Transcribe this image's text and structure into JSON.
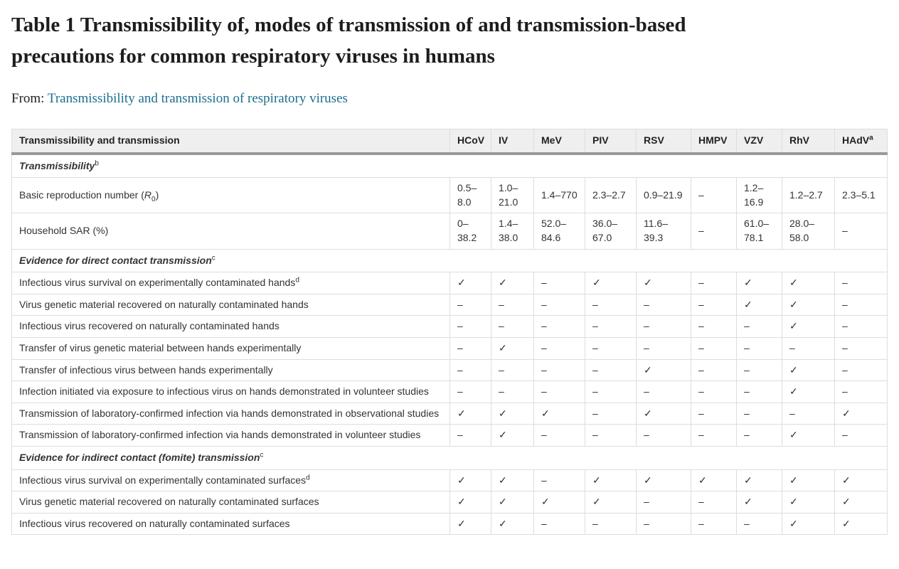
{
  "page": {
    "title": "Table 1 Transmissibility of, modes of transmission of and transmission-based precautions for common respiratory viruses in humans",
    "title_lines": [
      "Table 1 Transmissibility of, modes of transmission of and transmission-based",
      "precautions for common respiratory viruses in humans"
    ],
    "from_label": "From:",
    "source_link": "Transmissibility and transmission of respiratory viruses"
  },
  "colors": {
    "link": "#1c6e8f",
    "header_bg": "#efefef",
    "header_rule": "#9a9a9a",
    "border": "#dddddd",
    "text": "#333333",
    "title": "#1d1d1d"
  },
  "glyphs": {
    "check": "✓",
    "dash": "–"
  },
  "table": {
    "corner_header": "Transmissibility and transmission",
    "columns": [
      {
        "label": "HCoV",
        "sup": ""
      },
      {
        "label": "IV",
        "sup": ""
      },
      {
        "label": "MeV",
        "sup": ""
      },
      {
        "label": "PIV",
        "sup": ""
      },
      {
        "label": "RSV",
        "sup": ""
      },
      {
        "label": "HMPV",
        "sup": ""
      },
      {
        "label": "VZV",
        "sup": ""
      },
      {
        "label": "RhV",
        "sup": ""
      },
      {
        "label": "HAdV",
        "sup": "a"
      }
    ],
    "sections": [
      {
        "heading": "Transmissibility",
        "heading_sup": "b",
        "rows": [
          {
            "label_parts": {
              "before": "Basic reproduction number (",
              "italic": "R",
              "sub": "0",
              "after": ")"
            },
            "values": [
              "0.5–8.0",
              "1.0–21.0",
              "1.4–770",
              "2.3–2.7",
              "0.9–21.9",
              "–",
              "1.2–16.9",
              "1.2–2.7",
              "2.3–5.1"
            ]
          },
          {
            "label": "Household SAR (%)",
            "values": [
              "0–38.2",
              "1.4–38.0",
              "52.0–84.6",
              "36.0–67.0",
              "11.6–39.3",
              "–",
              "61.0–78.1",
              "28.0–58.0",
              "–"
            ]
          }
        ]
      },
      {
        "heading": "Evidence for direct contact transmission",
        "heading_sup": "c",
        "rows": [
          {
            "label": "Infectious virus survival on experimentally contaminated hands",
            "label_sup": "d",
            "values": [
              "✓",
              "✓",
              "–",
              "✓",
              "✓",
              "–",
              "✓",
              "✓",
              "–"
            ]
          },
          {
            "label": "Virus genetic material recovered on naturally contaminated hands",
            "values": [
              "–",
              "–",
              "–",
              "–",
              "–",
              "–",
              "✓",
              "✓",
              "–"
            ]
          },
          {
            "label": "Infectious virus recovered on naturally contaminated hands",
            "values": [
              "–",
              "–",
              "–",
              "–",
              "–",
              "–",
              "–",
              "✓",
              "–"
            ]
          },
          {
            "label": "Transfer of virus genetic material between hands experimentally",
            "values": [
              "–",
              "✓",
              "–",
              "–",
              "–",
              "–",
              "–",
              "–",
              "–"
            ]
          },
          {
            "label": "Transfer of infectious virus between hands experimentally",
            "values": [
              "–",
              "–",
              "–",
              "–",
              "✓",
              "–",
              "–",
              "✓",
              "–"
            ]
          },
          {
            "label": "Infection initiated via exposure to infectious virus on hands demonstrated in volunteer studies",
            "values": [
              "–",
              "–",
              "–",
              "–",
              "–",
              "–",
              "–",
              "✓",
              "–"
            ]
          },
          {
            "label": "Transmission of laboratory-confirmed infection via hands demonstrated in observational studies",
            "values": [
              "✓",
              "✓",
              "✓",
              "–",
              "✓",
              "–",
              "–",
              "–",
              "✓"
            ]
          },
          {
            "label": "Transmission of laboratory-confirmed infection via hands demonstrated in volunteer studies",
            "values": [
              "–",
              "✓",
              "–",
              "–",
              "–",
              "–",
              "–",
              "✓",
              "–"
            ]
          }
        ]
      },
      {
        "heading": "Evidence for indirect contact (fomite) transmission",
        "heading_sup": "c",
        "rows": [
          {
            "label": "Infectious virus survival on experimentally contaminated surfaces",
            "label_sup": "d",
            "values": [
              "✓",
              "✓",
              "–",
              "✓",
              "✓",
              "✓",
              "✓",
              "✓",
              "✓"
            ]
          },
          {
            "label": "Virus genetic material recovered on naturally contaminated surfaces",
            "values": [
              "✓",
              "✓",
              "✓",
              "✓",
              "–",
              "–",
              "✓",
              "✓",
              "✓"
            ]
          },
          {
            "label": "Infectious virus recovered on naturally contaminated surfaces",
            "values": [
              "✓",
              "✓",
              "–",
              "–",
              "–",
              "–",
              "–",
              "✓",
              "✓"
            ]
          }
        ]
      }
    ]
  }
}
